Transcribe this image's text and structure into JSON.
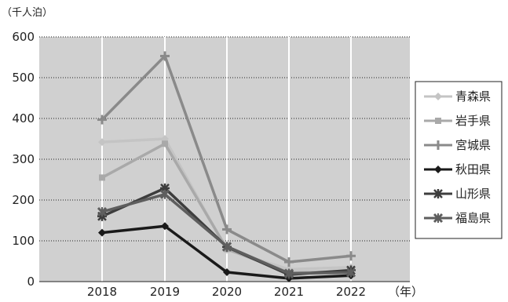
{
  "chart_data": {
    "type": "line",
    "y_unit_label": "（千人泊）",
    "x_unit_label": "（年）",
    "categories": [
      "2018",
      "2019",
      "2020",
      "2021",
      "2022"
    ],
    "ylim": [
      0,
      600
    ],
    "yticks": [
      "0",
      "100",
      "200",
      "300",
      "400",
      "500",
      "600"
    ],
    "grid": true,
    "legend_position": "right",
    "series": [
      {
        "name": "青森県",
        "values": [
          342,
          350,
          78,
          30,
          35
        ],
        "color": "#c4c4c4",
        "marker": "diamond"
      },
      {
        "name": "岩手県",
        "values": [
          255,
          338,
          80,
          22,
          25
        ],
        "color": "#a9a9a9",
        "marker": "square"
      },
      {
        "name": "宮城県",
        "values": [
          397,
          553,
          128,
          48,
          63
        ],
        "color": "#8a8a8a",
        "marker": "plus"
      },
      {
        "name": "秋田県",
        "values": [
          120,
          136,
          23,
          8,
          15
        ],
        "color": "#1a1a1a",
        "marker": "diamond"
      },
      {
        "name": "山形県",
        "values": [
          160,
          229,
          85,
          17,
          28
        ],
        "color": "#3d3d3d",
        "marker": "asterisk"
      },
      {
        "name": "福島県",
        "values": [
          171,
          214,
          86,
          20,
          22
        ],
        "color": "#5e5e5e",
        "marker": "xstar"
      }
    ]
  }
}
